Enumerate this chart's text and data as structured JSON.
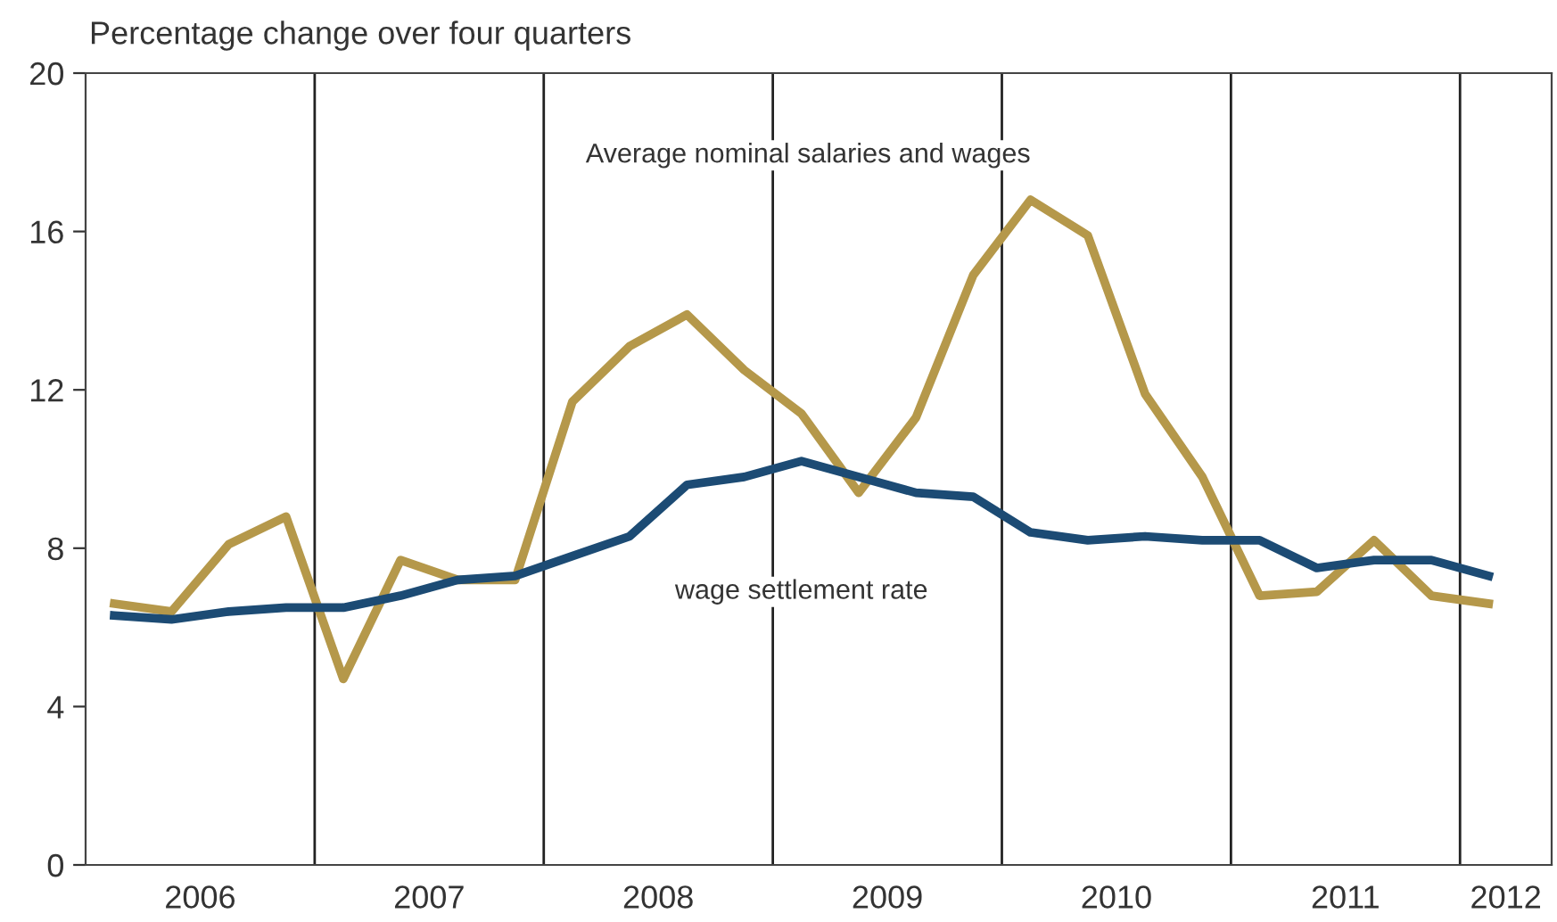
{
  "chart_data": {
    "type": "line",
    "title": "Percentage change over four quarters",
    "x": [
      2006.125,
      2006.375,
      2006.625,
      2006.875,
      2007.125,
      2007.375,
      2007.625,
      2007.875,
      2008.125,
      2008.375,
      2008.625,
      2008.875,
      2009.125,
      2009.375,
      2009.625,
      2009.875,
      2010.125,
      2010.375,
      2010.625,
      2010.875,
      2011.125,
      2011.375,
      2011.625,
      2011.875,
      2012.125
    ],
    "series": [
      {
        "name": "Average nominal salaries and wages",
        "color": "#b5984a",
        "values": [
          6.6,
          6.4,
          8.1,
          8.8,
          4.7,
          7.7,
          7.2,
          7.2,
          11.7,
          13.1,
          13.9,
          12.5,
          11.4,
          9.4,
          11.3,
          14.9,
          16.8,
          15.9,
          11.9,
          9.8,
          6.8,
          6.9,
          8.2,
          6.8,
          6.6
        ]
      },
      {
        "name": "wage settlement rate",
        "color": "#1c4b74",
        "values": [
          6.3,
          6.2,
          6.4,
          6.5,
          6.5,
          6.8,
          7.2,
          7.3,
          7.8,
          8.3,
          9.6,
          9.8,
          10.2,
          9.8,
          9.4,
          9.3,
          8.4,
          8.2,
          8.3,
          8.2,
          8.2,
          7.5,
          7.7,
          7.7,
          7.3
        ]
      }
    ],
    "xlim": [
      2006.0,
      2012.4
    ],
    "xticks": [
      {
        "value": 2006.5,
        "label": "2006"
      },
      {
        "value": 2007.5,
        "label": "2007"
      },
      {
        "value": 2008.5,
        "label": "2008"
      },
      {
        "value": 2009.5,
        "label": "2009"
      },
      {
        "value": 2010.5,
        "label": "2010"
      },
      {
        "value": 2011.5,
        "label": "2011"
      },
      {
        "value": 2012.2,
        "label": "2012"
      }
    ],
    "ylim": [
      0,
      20
    ],
    "yticks": [
      0,
      4,
      8,
      12,
      16,
      20
    ],
    "ref_lines": [
      {
        "axis": "x",
        "value": 2007,
        "color": "#222222"
      },
      {
        "axis": "x",
        "value": 2008,
        "color": "#222222"
      },
      {
        "axis": "x",
        "value": 2009,
        "color": "#222222"
      },
      {
        "axis": "x",
        "value": 2010,
        "color": "#222222"
      },
      {
        "axis": "x",
        "value": 2011,
        "color": "#222222"
      },
      {
        "axis": "x",
        "value": 2012,
        "color": "#222222"
      }
    ],
    "grid": false,
    "legend": false,
    "marker": "none",
    "line_style": "solid"
  }
}
